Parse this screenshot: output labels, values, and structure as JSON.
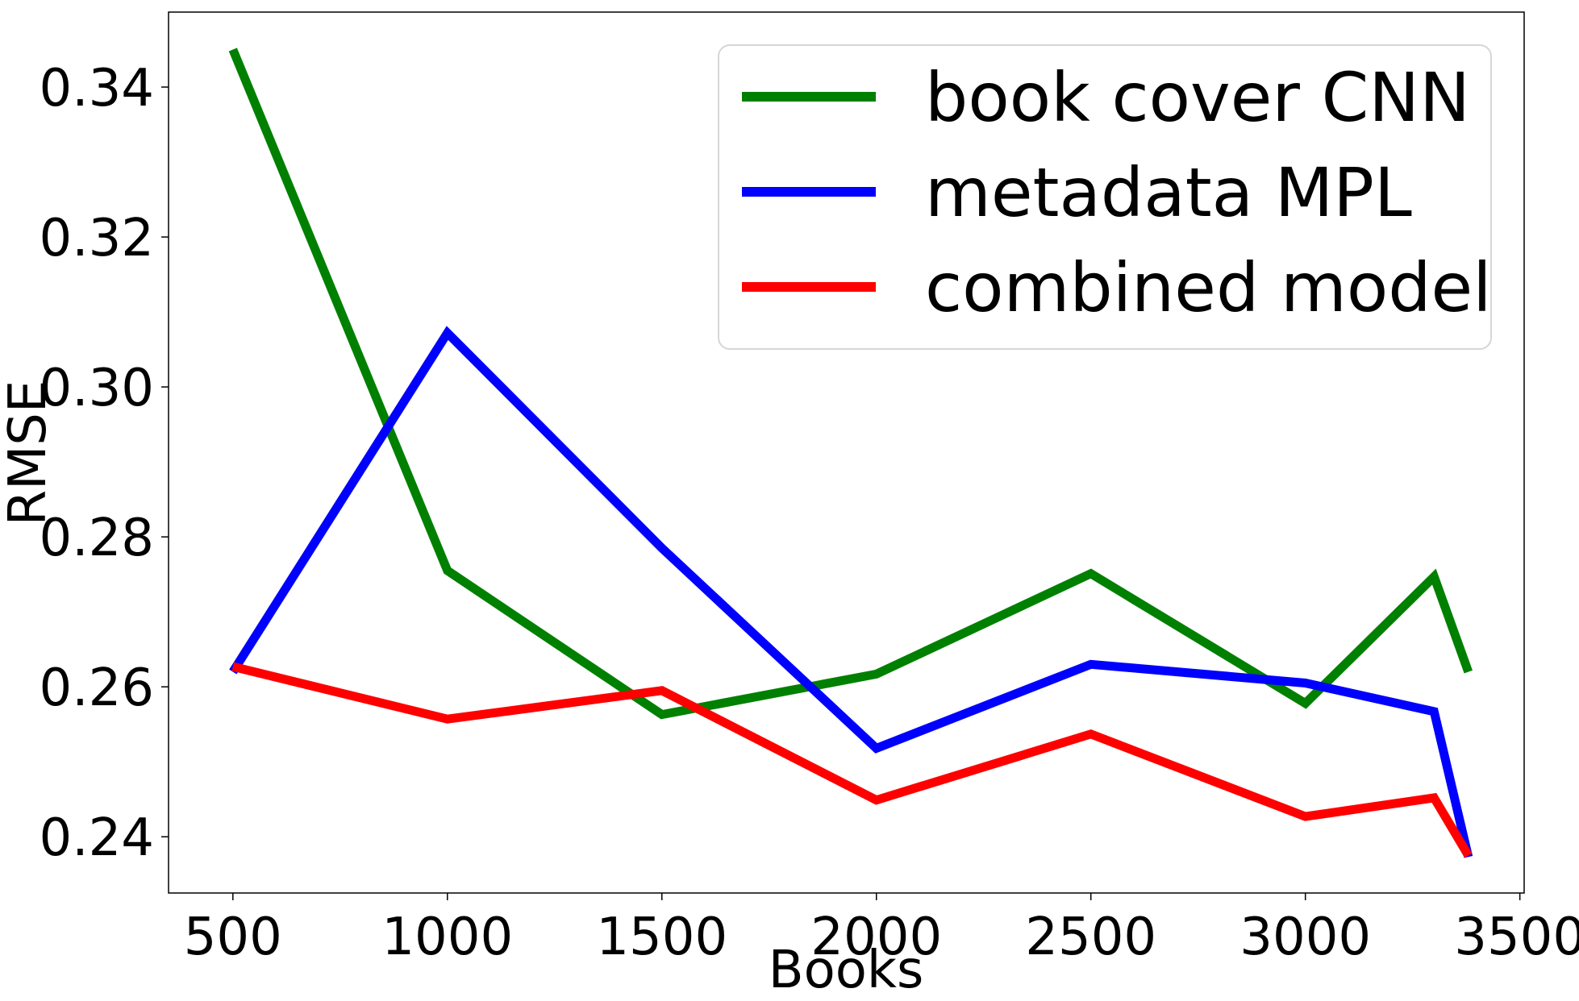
{
  "chart_data": {
    "type": "line",
    "xlabel": "Books",
    "ylabel": "RMSE",
    "xlim": [
      350,
      3510
    ],
    "ylim": [
      0.2325,
      0.35
    ],
    "xticks": [
      500,
      1000,
      1500,
      2000,
      2500,
      3000,
      3500
    ],
    "xtick_labels": [
      "500",
      "1000",
      "1500",
      "2000",
      "2500",
      "3000",
      "3500"
    ],
    "yticks": [
      0.24,
      0.26,
      0.28,
      0.3,
      0.32,
      0.34
    ],
    "ytick_labels": [
      "0.24",
      "0.26",
      "0.28",
      "0.30",
      "0.32",
      "0.34"
    ],
    "grid": false,
    "legend_position": "top-right",
    "x": [
      500,
      1000,
      1500,
      2000,
      2500,
      3000,
      3300,
      3380
    ],
    "series": [
      {
        "name": "book cover CNN",
        "color": "#008000",
        "values": [
          0.345,
          0.2755,
          0.2563,
          0.2617,
          0.2751,
          0.2578,
          0.2747,
          0.262
        ]
      },
      {
        "name": "metadata MPL",
        "color": "#0000ff",
        "values": [
          0.262,
          0.3072,
          0.2785,
          0.2518,
          0.263,
          0.2605,
          0.2567,
          0.2373
        ]
      },
      {
        "name": "combined model",
        "color": "#ff0000",
        "values": [
          0.2627,
          0.2557,
          0.2595,
          0.2449,
          0.2537,
          0.2427,
          0.2452,
          0.2375
        ]
      }
    ]
  }
}
